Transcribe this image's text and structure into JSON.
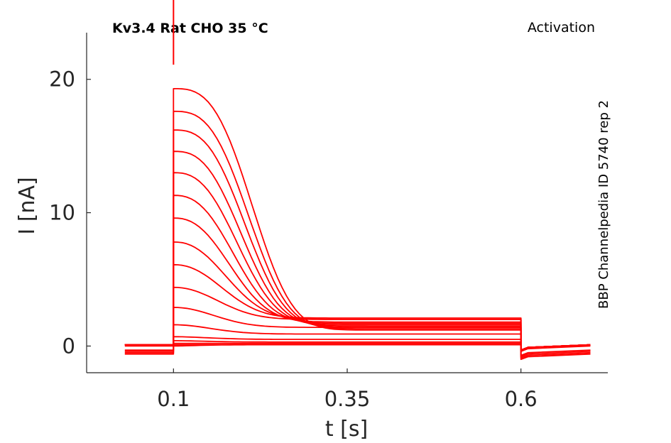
{
  "chart_data": {
    "type": "line",
    "title": "Kv3.4  Rat  CHO  35 °C",
    "protocol": "Activation",
    "side_label": "BBP Channelpedia ID 5740 rep 2",
    "xlabel": "t [s]",
    "ylabel": "I [nA]",
    "xlim": [
      -0.025,
      0.725
    ],
    "ylim": [
      -2,
      23.5
    ],
    "x_ticks": [
      0.1,
      0.35,
      0.6
    ],
    "x_tick_labels": [
      "0.1",
      "0.35",
      "0.6"
    ],
    "y_ticks": [
      0,
      10,
      20
    ],
    "y_tick_labels": [
      "0",
      "10",
      "20"
    ],
    "grid": false,
    "color": "#ff0000",
    "pulse": {
      "start": 0.1,
      "end": 0.6
    },
    "trace_start": 0.03,
    "trace_end": 0.7,
    "series": [
      {
        "values": {
          "baseline": -0.6,
          "peak": 0.0,
          "steady": 0.1,
          "tail": -0.6
        }
      },
      {
        "values": {
          "baseline": -0.5,
          "peak": 0.1,
          "steady": 0.1,
          "tail": -0.5
        }
      },
      {
        "values": {
          "baseline": -0.4,
          "peak": 0.2,
          "steady": 0.2,
          "tail": -0.4
        }
      },
      {
        "values": {
          "baseline": -0.3,
          "peak": 0.4,
          "steady": 0.3,
          "tail": -0.3
        }
      },
      {
        "values": {
          "baseline": 0.0,
          "peak": 0.7,
          "steady": 0.5,
          "tail": 0.0
        }
      },
      {
        "values": {
          "baseline": 0.1,
          "peak": 1.6,
          "steady": 0.9,
          "tail": 0.1
        }
      },
      {
        "values": {
          "baseline": 0.1,
          "peak": 2.9,
          "steady": 1.4,
          "tail": 0.1
        }
      },
      {
        "values": {
          "baseline": 0.1,
          "peak": 4.4,
          "steady": 2.0,
          "tail": 0.1
        }
      },
      {
        "values": {
          "baseline": 0.1,
          "peak": 6.1,
          "steady": 2.1,
          "tail": 0.1
        }
      },
      {
        "values": {
          "baseline": 0.1,
          "peak": 7.8,
          "steady": 2.0,
          "tail": 0.1
        }
      },
      {
        "values": {
          "baseline": 0.1,
          "peak": 9.6,
          "steady": 1.8,
          "tail": 0.1
        }
      },
      {
        "values": {
          "baseline": 0.1,
          "peak": 11.3,
          "steady": 1.7,
          "tail": 0.1
        }
      },
      {
        "values": {
          "baseline": 0.1,
          "peak": 13.0,
          "steady": 1.6,
          "tail": 0.1
        }
      },
      {
        "values": {
          "baseline": 0.1,
          "peak": 14.6,
          "steady": 1.5,
          "tail": 0.1
        }
      },
      {
        "values": {
          "baseline": 0.1,
          "peak": 16.2,
          "steady": 1.4,
          "tail": 0.1
        }
      },
      {
        "values": {
          "baseline": 0.1,
          "peak": 17.6,
          "steady": 1.3,
          "tail": 0.1
        }
      },
      {
        "values": {
          "baseline": 0.1,
          "peak": 19.3,
          "steady": 1.2,
          "tail": 0.1
        }
      }
    ]
  }
}
